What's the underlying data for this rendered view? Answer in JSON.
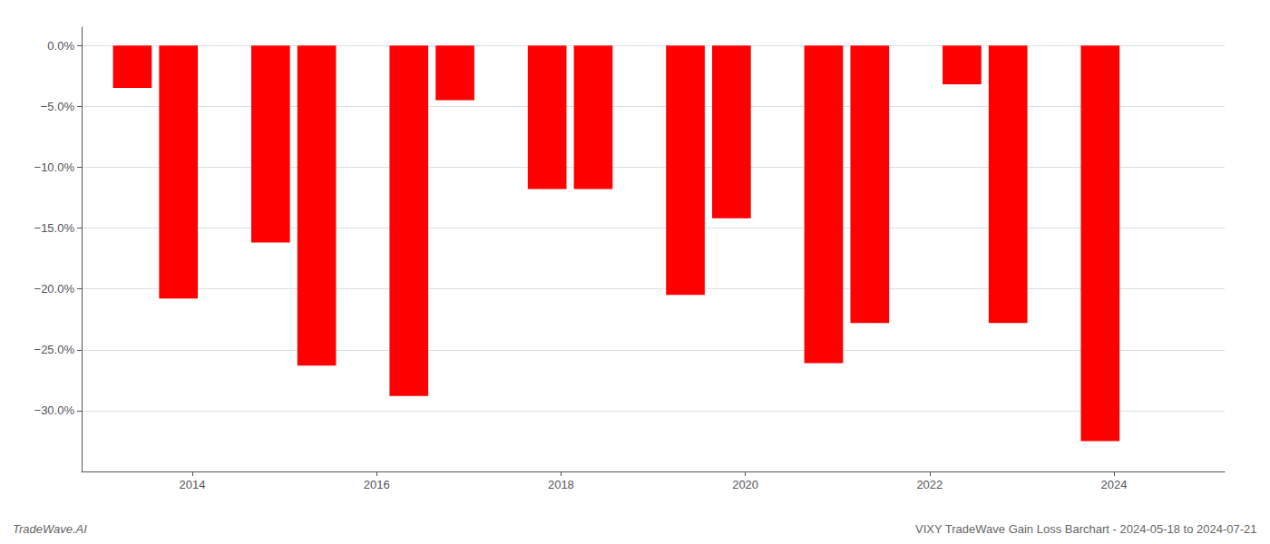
{
  "chart_data": {
    "type": "bar",
    "x": [
      2013.35,
      2013.85,
      2014.85,
      2015.35,
      2016.35,
      2016.85,
      2017.85,
      2018.35,
      2019.35,
      2019.85,
      2020.85,
      2021.35,
      2022.35,
      2022.85,
      2023.85
    ],
    "values": [
      -3.5,
      -20.8,
      -16.2,
      -26.3,
      -28.8,
      -4.5,
      -11.8,
      -11.8,
      -20.5,
      -14.2,
      -26.1,
      -22.8,
      -3.2,
      -22.8,
      -32.5
    ],
    "color": "#ff0000",
    "xlim": [
      2012.8,
      2025.2
    ],
    "xticks": [
      2014,
      2016,
      2018,
      2020,
      2022,
      2024
    ],
    "ylim": [
      -35,
      1.5
    ],
    "yticks": [
      {
        "value": 0.0,
        "label": "0.0%"
      },
      {
        "value": -5.0,
        "label": "−5.0%"
      },
      {
        "value": -10.0,
        "label": "−10.0%"
      },
      {
        "value": -15.0,
        "label": "−15.0%"
      },
      {
        "value": -20.0,
        "label": "−20.0%"
      },
      {
        "value": -25.0,
        "label": "−25.0%"
      },
      {
        "value": -30.0,
        "label": "−30.0%"
      }
    ],
    "grid": true,
    "annotations": [
      "TradeWave.AI",
      "VIXY TradeWave Gain Loss Barchart - 2024-05-18 to 2024-07-21"
    ]
  }
}
